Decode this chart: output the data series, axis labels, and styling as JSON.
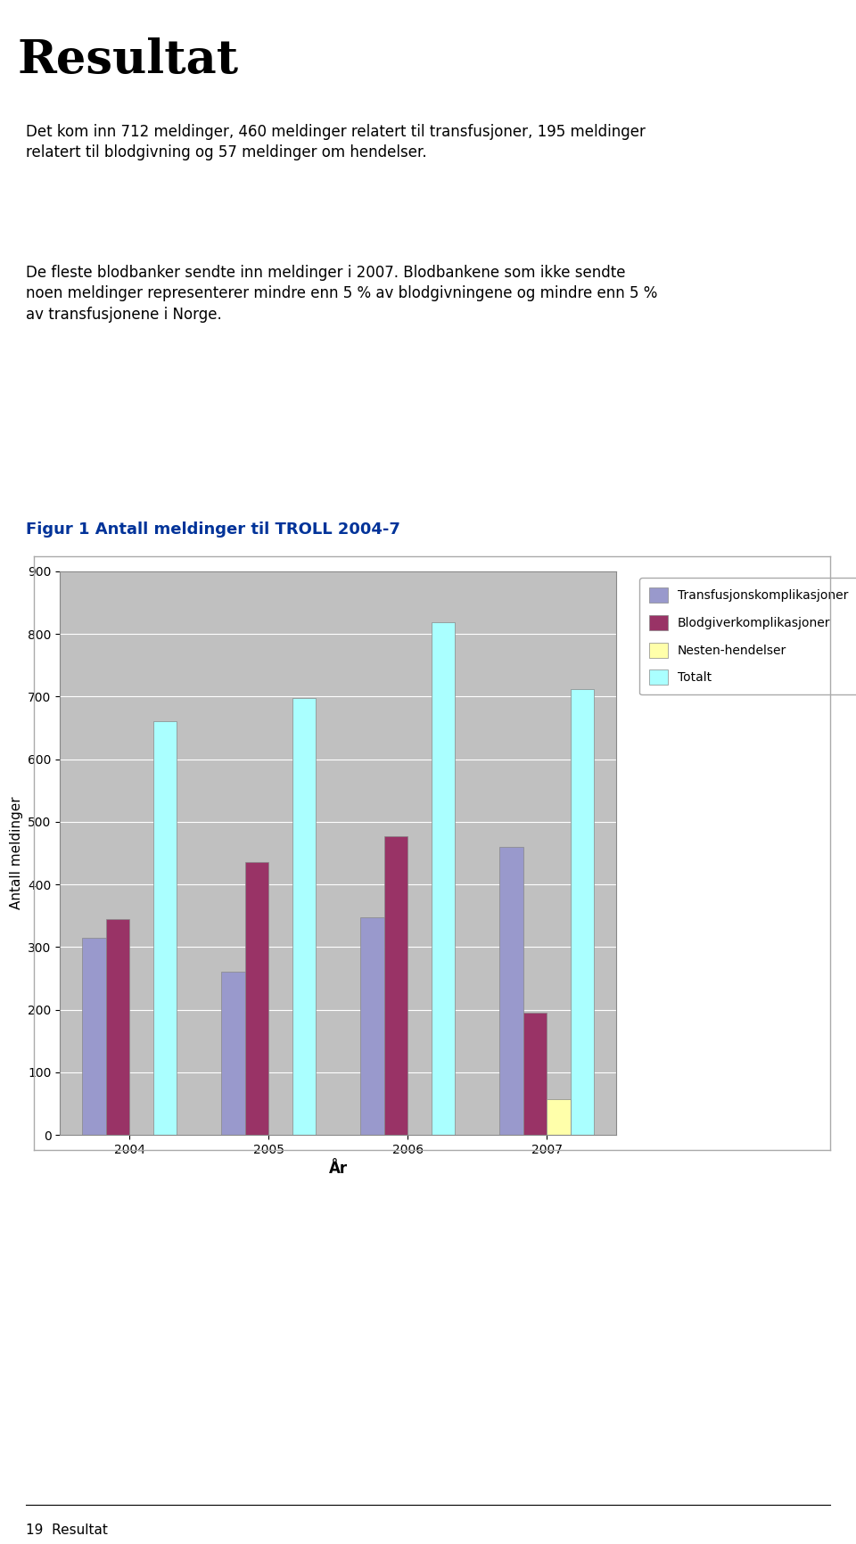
{
  "title": "Figur 1 Antall meldinger til TROLL 2004-7",
  "header": "Resultat",
  "header_bg_color": "#b5a898",
  "body_text_1": "Det kom inn 712 meldinger, 460 meldinger relatert til transfusjoner, 195 meldinger\nrelatert til blodgivning og 57 meldinger om hendelser.",
  "body_text_2": "De fleste blodbanker sendte inn meldinger i 2007. Blodbankene som ikke sendte\nnoen meldinger representerer mindre enn 5 % av blodgivningene og mindre enn 5 %\nav transfusjonene i Norge.",
  "footer_text": "19  Resultat",
  "years": [
    2004,
    2005,
    2006,
    2007
  ],
  "series": {
    "Transfusjonskomplikasjoner": [
      315,
      260,
      348,
      460
    ],
    "Blodgiverkomplikasjoner": [
      345,
      435,
      477,
      195
    ],
    "Nesten-hendelser": [
      0,
      0,
      0,
      57
    ],
    "Totalt": [
      660,
      697,
      818,
      712
    ]
  },
  "bar_colors": {
    "Transfusjonskomplikasjoner": "#9999cc",
    "Blodgiverkomplikasjoner": "#993366",
    "Nesten-hendelser": "#ffffaa",
    "Totalt": "#aaffff"
  },
  "xlabel": "År",
  "ylabel": "Antall meldinger",
  "ylim": [
    0,
    900
  ],
  "yticks": [
    0,
    100,
    200,
    300,
    400,
    500,
    600,
    700,
    800,
    900
  ],
  "chart_bg_color": "#c0c0c0",
  "title_color": "#003399",
  "title_fontsize": 13,
  "body_fontsize": 12,
  "footer_fontsize": 11,
  "header_fontsize": 38
}
